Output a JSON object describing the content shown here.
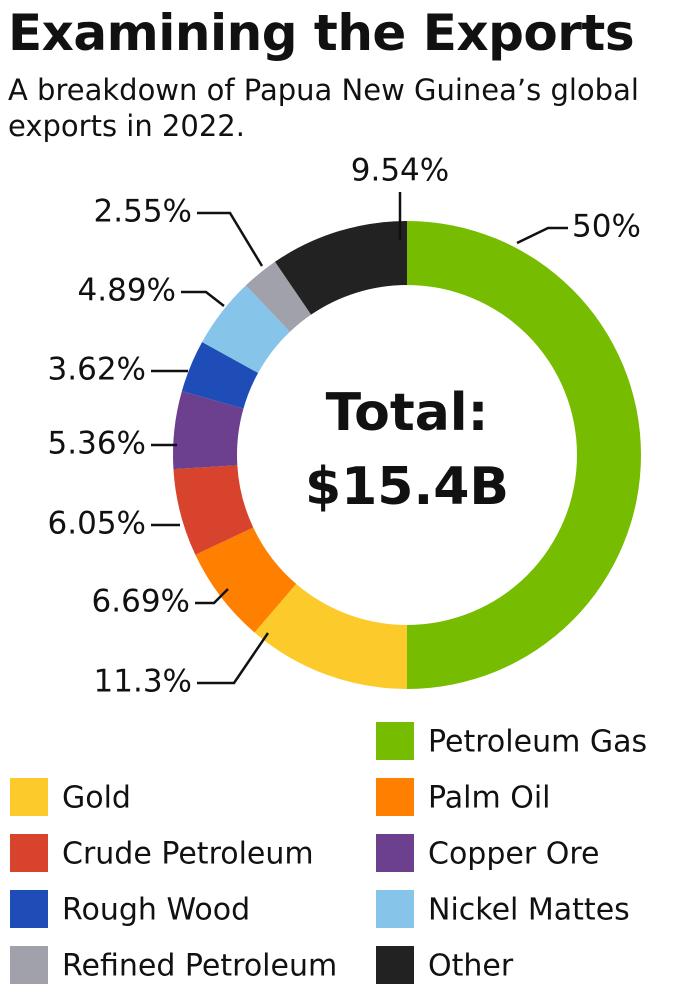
{
  "chart_data": {
    "type": "donut",
    "title": "Examining the Exports",
    "subtitle": "A breakdown of Papua New Guinea’s global exports in 2022.",
    "center_label": "Total:",
    "center_value": "$15.4B",
    "categories": [
      "Petroleum Gas",
      "Gold",
      "Palm Oil",
      "Crude Petroleum",
      "Copper Ore",
      "Rough Wood",
      "Nickel Mattes",
      "Refined Petroleum",
      "Other"
    ],
    "values": [
      50,
      11.3,
      6.69,
      6.05,
      5.36,
      3.62,
      4.89,
      2.55,
      9.54
    ],
    "value_labels": [
      "50%",
      "11.3%",
      "6.69%",
      "6.05%",
      "5.36%",
      "3.62%",
      "4.89%",
      "2.55%",
      "9.54%"
    ],
    "colors": [
      "#76bc00",
      "#fccb2b",
      "#ff7f00",
      "#d8432d",
      "#6c3f8f",
      "#1f4db8",
      "#86c4ea",
      "#a0a1ab",
      "#222222"
    ]
  }
}
